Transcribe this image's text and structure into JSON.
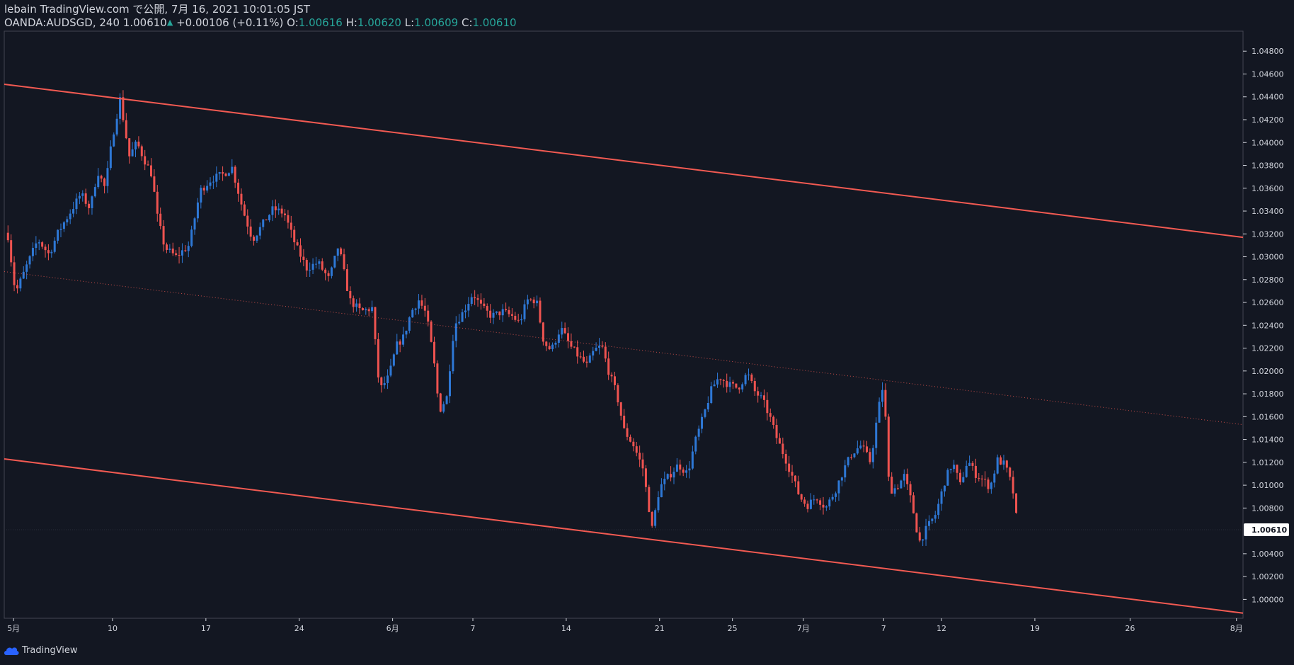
{
  "header": {
    "publish_line": "lebain TradingView.com で公開, 7月 16, 2021 10:01:05 JST",
    "symbol": "OANDA:AUDSGD, 240",
    "last": "1.00610",
    "change": "+0.00106 (+0.11%)",
    "o_label": "O:",
    "o_value": "1.00616",
    "h_label": "H:",
    "h_value": "1.00620",
    "l_label": "L:",
    "l_value": "1.00609",
    "c_label": "C:",
    "c_value": "1.00610"
  },
  "branding": {
    "logo_text": "TradingView",
    "icon": "tradingview-cloud-icon"
  },
  "colors": {
    "background": "#131722",
    "up": "#2e78d6",
    "down": "#ef5350",
    "channel": "#f25a52",
    "axis_text": "#d1d4dc",
    "price_badge_bg": "#ffffff"
  },
  "chart_data": {
    "type": "candlestick",
    "symbol": "OANDA:AUDSGD",
    "interval": "240",
    "y_axis": {
      "min": 0.99835,
      "max": 1.04975,
      "ticks": [
        "1.00000",
        "1.00200",
        "1.00400",
        "1.00800",
        "1.01000",
        "1.01200",
        "1.01400",
        "1.01600",
        "1.01800",
        "1.02000",
        "1.02200",
        "1.02400",
        "1.02600",
        "1.02800",
        "1.03000",
        "1.03200",
        "1.03400",
        "1.03600",
        "1.03800",
        "1.04000",
        "1.04200",
        "1.04400",
        "1.04600",
        "1.04800"
      ]
    },
    "x_axis": {
      "unit": "trading_day_index",
      "min": -0.2,
      "max": 66.15,
      "ticks": [
        {
          "label": "5月",
          "pos": 0.3
        },
        {
          "label": "10",
          "pos": 5.6
        },
        {
          "label": "17",
          "pos": 10.6
        },
        {
          "label": "24",
          "pos": 15.6
        },
        {
          "label": "6月",
          "pos": 20.6
        },
        {
          "label": "7",
          "pos": 24.9
        },
        {
          "label": "14",
          "pos": 29.9
        },
        {
          "label": "21",
          "pos": 34.9
        },
        {
          "label": "25",
          "pos": 38.8
        },
        {
          "label": "7月",
          "pos": 42.6
        },
        {
          "label": "7",
          "pos": 46.9
        },
        {
          "label": "12",
          "pos": 50.0
        },
        {
          "label": "19",
          "pos": 55.0
        },
        {
          "label": "26",
          "pos": 60.1
        },
        {
          "label": "8月",
          "pos": 65.8
        }
      ]
    },
    "current_price": 1.0061,
    "current_price_label": "1.00610",
    "channel_lines": [
      {
        "name": "upper-channel-line",
        "start": [
          -0.2,
          1.0451
        ],
        "end": [
          66.15,
          1.0317
        ],
        "style": "solid"
      },
      {
        "name": "lower-channel-line",
        "start": [
          -0.2,
          1.0123
        ],
        "end": [
          66.15,
          0.9988
        ],
        "style": "solid"
      },
      {
        "name": "middle-channel-line",
        "start": [
          -0.2,
          1.0287
        ],
        "end": [
          66.15,
          1.0153
        ],
        "style": "dotted"
      }
    ],
    "close_path": [
      [
        0,
        1.0318
      ],
      [
        0.4,
        1.0268
      ],
      [
        1.0,
        1.0292
      ],
      [
        1.6,
        1.0315
      ],
      [
        2.2,
        1.0302
      ],
      [
        2.7,
        1.0322
      ],
      [
        3.3,
        1.0338
      ],
      [
        3.9,
        1.0355
      ],
      [
        4.4,
        1.0342
      ],
      [
        4.8,
        1.0375
      ],
      [
        5.2,
        1.036
      ],
      [
        5.6,
        1.0405
      ],
      [
        6.0,
        1.0438
      ],
      [
        6.5,
        1.0388
      ],
      [
        6.9,
        1.04
      ],
      [
        7.3,
        1.0385
      ],
      [
        7.7,
        1.0372
      ],
      [
        8.0,
        1.0335
      ],
      [
        8.4,
        1.0308
      ],
      [
        9.0,
        1.03
      ],
      [
        9.7,
        1.031
      ],
      [
        10.3,
        1.0358
      ],
      [
        10.9,
        1.0368
      ],
      [
        11.5,
        1.0372
      ],
      [
        12.0,
        1.0378
      ],
      [
        12.6,
        1.034
      ],
      [
        13.1,
        1.0315
      ],
      [
        13.7,
        1.033
      ],
      [
        14.2,
        1.0342
      ],
      [
        14.8,
        1.0338
      ],
      [
        15.4,
        1.031
      ],
      [
        16.0,
        1.029
      ],
      [
        16.6,
        1.0295
      ],
      [
        17.2,
        1.028
      ],
      [
        17.7,
        1.031
      ],
      [
        18.3,
        1.0262
      ],
      [
        18.9,
        1.0252
      ],
      [
        19.5,
        1.0255
      ],
      [
        19.9,
        1.0183
      ],
      [
        20.4,
        1.0195
      ],
      [
        20.8,
        1.0222
      ],
      [
        21.2,
        1.023
      ],
      [
        21.6,
        1.0252
      ],
      [
        22.0,
        1.0262
      ],
      [
        22.4,
        1.025
      ],
      [
        22.8,
        1.021
      ],
      [
        23.1,
        1.0165
      ],
      [
        23.5,
        1.0177
      ],
      [
        23.9,
        1.024
      ],
      [
        24.4,
        1.0252
      ],
      [
        24.9,
        1.0268
      ],
      [
        25.4,
        1.0255
      ],
      [
        25.9,
        1.0248
      ],
      [
        26.5,
        1.0252
      ],
      [
        27.0,
        1.0248
      ],
      [
        27.4,
        1.0242
      ],
      [
        27.8,
        1.0262
      ],
      [
        28.3,
        1.0262
      ],
      [
        28.7,
        1.0225
      ],
      [
        29.1,
        1.0218
      ],
      [
        29.6,
        1.0238
      ],
      [
        30.1,
        1.0222
      ],
      [
        30.6,
        1.0212
      ],
      [
        31.0,
        1.0205
      ],
      [
        31.4,
        1.0218
      ],
      [
        31.8,
        1.0222
      ],
      [
        32.2,
        1.0198
      ],
      [
        32.6,
        1.018
      ],
      [
        33.0,
        1.0148
      ],
      [
        33.5,
        1.0135
      ],
      [
        34.0,
        1.0115
      ],
      [
        34.5,
        1.0062
      ],
      [
        34.9,
        1.0098
      ],
      [
        35.4,
        1.0108
      ],
      [
        35.9,
        1.0118
      ],
      [
        36.4,
        1.011
      ],
      [
        36.8,
        1.0138
      ],
      [
        37.2,
        1.0158
      ],
      [
        37.7,
        1.0185
      ],
      [
        38.1,
        1.0195
      ],
      [
        38.6,
        1.0188
      ],
      [
        39.1,
        1.0185
      ],
      [
        39.6,
        1.0198
      ],
      [
        40.0,
        1.0182
      ],
      [
        40.4,
        1.0175
      ],
      [
        40.8,
        1.016
      ],
      [
        41.2,
        1.014
      ],
      [
        41.6,
        1.0125
      ],
      [
        42.0,
        1.0108
      ],
      [
        42.4,
        1.009
      ],
      [
        42.8,
        1.0082
      ],
      [
        43.3,
        1.009
      ],
      [
        43.8,
        1.008
      ],
      [
        44.3,
        1.0095
      ],
      [
        44.8,
        1.0115
      ],
      [
        45.2,
        1.0128
      ],
      [
        45.7,
        1.0135
      ],
      [
        46.2,
        1.012
      ],
      [
        46.6,
        1.0165
      ],
      [
        46.9,
        1.019
      ],
      [
        47.2,
        1.0095
      ],
      [
        47.6,
        1.0098
      ],
      [
        48.0,
        1.0108
      ],
      [
        48.4,
        1.0085
      ],
      [
        48.8,
        1.005
      ],
      [
        49.2,
        1.0062
      ],
      [
        49.7,
        1.0075
      ],
      [
        50.2,
        1.0105
      ],
      [
        50.6,
        1.012
      ],
      [
        51.0,
        1.01
      ],
      [
        51.4,
        1.0122
      ],
      [
        51.8,
        1.011
      ],
      [
        52.2,
        1.0105
      ],
      [
        52.6,
        1.0098
      ],
      [
        53.0,
        1.0122
      ],
      [
        53.4,
        1.0118
      ],
      [
        53.8,
        1.0098
      ],
      [
        54.1,
        1.006
      ]
    ],
    "note": "AUDSGD 4-hour OHLC candles; individual candle values estimated from the close path, bodies blue when close > open, red when close < open"
  }
}
